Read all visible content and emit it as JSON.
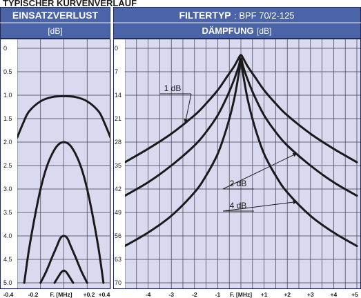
{
  "page_header": "TYPISCHER KURVENVERLAUF",
  "colors": {
    "header_bg": "#4b64a8",
    "plot_bg": "#d9daf0",
    "grid": "#3a3a4a",
    "curve": "#1a1a1a"
  },
  "chart_data": [
    {
      "type": "line",
      "title": "EINSATZVERLUST",
      "ylabel": "[dB]",
      "xlabel": "F. [MHz]",
      "x_ticks": [
        "-0.4",
        "-0.2",
        "F. [MHz]",
        "+0.2",
        "+0.4"
      ],
      "y_ticks": [
        "0",
        "0.5",
        "1.0",
        "1.5",
        "2.0",
        "2.5",
        "3.0",
        "3.5",
        "4.0",
        "4.5",
        "5.0"
      ],
      "xlim": [
        -0.4,
        0.4
      ],
      "ylim": [
        5.0,
        0
      ],
      "grid": true,
      "series": [
        {
          "x": [
            -0.4,
            -0.35,
            -0.3,
            -0.2,
            -0.1,
            0,
            0.1,
            0.2,
            0.3,
            0.35,
            0.4
          ],
          "y": [
            1.9,
            1.6,
            1.35,
            1.13,
            1.04,
            1.02,
            1.04,
            1.13,
            1.35,
            1.6,
            1.9
          ]
        },
        {
          "x": [
            -0.34,
            -0.3,
            -0.25,
            -0.2,
            -0.15,
            -0.1,
            -0.05,
            0,
            0.05,
            0.1,
            0.15,
            0.2,
            0.25,
            0.3,
            0.34
          ],
          "y": [
            5.0,
            4.3,
            3.6,
            3.0,
            2.55,
            2.25,
            2.06,
            2.0,
            2.06,
            2.25,
            2.55,
            3.0,
            3.6,
            4.3,
            5.0
          ]
        },
        {
          "x": [
            -0.2,
            -0.15,
            -0.1,
            -0.06,
            -0.03,
            0,
            0.03,
            0.06,
            0.1,
            0.15,
            0.2
          ],
          "y": [
            5.0,
            4.75,
            4.45,
            4.22,
            4.05,
            4.0,
            4.05,
            4.22,
            4.45,
            4.75,
            5.0
          ]
        },
        {
          "x": [
            -0.08,
            -0.06,
            -0.04,
            -0.02,
            0,
            0.02,
            0.04,
            0.06,
            0.08
          ],
          "y": [
            5.0,
            4.92,
            4.84,
            4.77,
            4.74,
            4.77,
            4.84,
            4.92,
            5.0
          ]
        }
      ]
    },
    {
      "type": "line",
      "title_label": "FILTERTYP",
      "title_value": ": BPF 70/2-125",
      "subtitle": "DÄMPFUNG",
      "subtitle_unit": "[dB]",
      "xlabel": "F. [MHz]",
      "x_ticks": [
        "-4",
        "-3",
        "-2",
        "-1",
        "F. [MHz]",
        "+1",
        "+2",
        "+3",
        "+4",
        "+5"
      ],
      "y_ticks": [
        "0",
        "7",
        "14",
        "21",
        "28",
        "35",
        "42",
        "49",
        "56",
        "63",
        "70"
      ],
      "xlim": [
        -5,
        5
      ],
      "ylim": [
        70,
        0
      ],
      "grid": true,
      "series": [
        {
          "name": "1 dB",
          "x": [
            -5,
            -4,
            -3,
            -2,
            -1.5,
            -1,
            -0.6,
            -0.3,
            -0.1,
            0,
            0.1,
            0.3,
            0.6,
            1,
            1.5,
            2,
            3,
            4,
            5
          ],
          "y": [
            34,
            30,
            25.5,
            20,
            16.5,
            12.5,
            8.5,
            5.5,
            3,
            2,
            3,
            5.5,
            8.5,
            12.5,
            16.5,
            20,
            25.5,
            30,
            34
          ]
        },
        {
          "name": "2 dB",
          "x": [
            -5,
            -4,
            -3,
            -2,
            -1.5,
            -1,
            -0.6,
            -0.3,
            -0.1,
            0,
            0.1,
            0.3,
            0.6,
            1,
            1.5,
            2,
            3,
            4,
            5
          ],
          "y": [
            44,
            40,
            35,
            29,
            25,
            20,
            14.5,
            9.5,
            5.5,
            3,
            5.5,
            9.5,
            14.5,
            20,
            25,
            29,
            35,
            40,
            44
          ]
        },
        {
          "name": "4 dB",
          "x": [
            -5,
            -4,
            -3,
            -2,
            -1.5,
            -1,
            -0.6,
            -0.3,
            -0.1,
            0,
            0.1,
            0.3,
            0.6,
            1,
            1.5,
            2,
            3,
            4,
            5
          ],
          "y": [
            59,
            55,
            50,
            43,
            38,
            31.5,
            23.5,
            15.5,
            8,
            4,
            8,
            15.5,
            23.5,
            31.5,
            38,
            43,
            50,
            55,
            59
          ]
        }
      ],
      "annotations": [
        {
          "text": "1 dB",
          "series": 0,
          "x_data": -2.4
        },
        {
          "text": "2 dB",
          "series": 1,
          "x_data": 2.4
        },
        {
          "text": "4 dB",
          "series": 2,
          "x_data": 2.4
        }
      ]
    }
  ]
}
